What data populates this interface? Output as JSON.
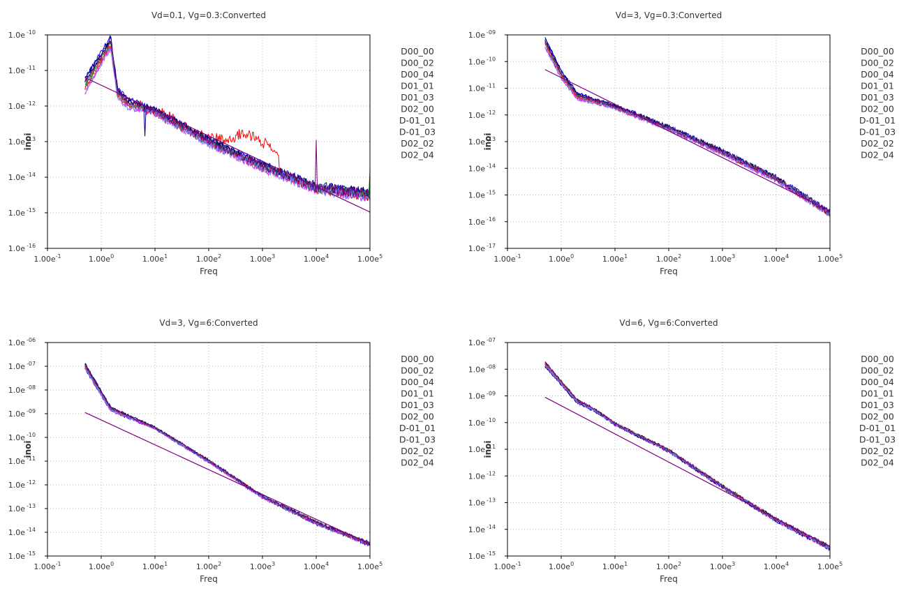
{
  "figure": {
    "background": "#ffffff"
  },
  "chart_data": [
    {
      "type": "line",
      "title": "Vd=0.1, Vg=0.3:Converted",
      "xlabel": "Freq",
      "ylabel": "inoi",
      "xscale": "log",
      "yscale": "log",
      "xlim": [
        0.1,
        100000
      ],
      "ylim_exp": [
        -16,
        -10
      ],
      "x_ticks": [
        "1.00e-1",
        "1.00e0",
        "1.00e1",
        "1.00e2",
        "1.00e3",
        "1.00e4",
        "1.00e5"
      ],
      "y_ticks": [
        "1.0e-16",
        "1.0e-15",
        "1.0e-14",
        "1.0e-13",
        "1.0e-12",
        "1.0e-11",
        "1.0e-10"
      ],
      "grid": "dotted",
      "legend_position": "right",
      "series": [
        {
          "name": "D00_00",
          "color": "#ff0000"
        },
        {
          "name": "D00_02",
          "color": "#0000ff"
        },
        {
          "name": "D00_04",
          "color": "#008000"
        },
        {
          "name": "D01_01",
          "color": "#ff00ff"
        },
        {
          "name": "D01_03",
          "color": "#000000"
        },
        {
          "name": "D02_00",
          "color": "#cc3333"
        },
        {
          "name": "D-01_01",
          "color": "#000080"
        },
        {
          "name": "D-01_03",
          "color": "#4d8080"
        },
        {
          "name": "D02_02",
          "color": "#8080ff"
        },
        {
          "name": "D02_04",
          "color": "#800080"
        }
      ],
      "trend_line": {
        "color": "#800080",
        "points": [
          [
            0.5,
            -11.2
          ],
          [
            100000,
            -14.98
          ]
        ]
      },
      "curve": {
        "knots": [
          [
            0.5,
            -11.4
          ],
          [
            1.5,
            -10.2
          ],
          [
            2,
            -11.6
          ],
          [
            3,
            -11.9
          ],
          [
            10,
            -12.15
          ],
          [
            100,
            -13.0
          ],
          [
            1000,
            -13.7
          ],
          [
            10000,
            -14.3
          ],
          [
            100000,
            -14.5
          ]
        ],
        "noise": 0.22,
        "spread": 0.35,
        "bump": {
          "series": 0,
          "from": 2.5,
          "to": 2000,
          "amp": 0.75,
          "center": 800,
          "width": 0.55
        },
        "spikes": [
          [
            6.5,
            -12.85
          ],
          [
            10000,
            -12.95
          ],
          [
            100000,
            -13.8
          ]
        ]
      }
    },
    {
      "type": "line",
      "title": "Vd=3, Vg=0.3:Converted",
      "xlabel": "Freq",
      "ylabel": "inoi",
      "xscale": "log",
      "yscale": "log",
      "xlim": [
        0.1,
        100000
      ],
      "ylim_exp": [
        -17,
        -9
      ],
      "x_ticks": [
        "1.00e-1",
        "1.00e0",
        "1.00e1",
        "1.00e2",
        "1.00e3",
        "1.00e4",
        "1.00e5"
      ],
      "y_ticks": [
        "1.0e-17",
        "1.0e-16",
        "1.0e-15",
        "1.0e-14",
        "1.0e-13",
        "1.0e-12",
        "1.0e-11",
        "1.0e-10",
        "1.0e-09"
      ],
      "grid": "dotted",
      "legend_position": "right",
      "series": [
        {
          "name": "D00_00",
          "color": "#ff0000"
        },
        {
          "name": "D00_02",
          "color": "#0000ff"
        },
        {
          "name": "D00_04",
          "color": "#008000"
        },
        {
          "name": "D01_01",
          "color": "#ff00ff"
        },
        {
          "name": "D01_03",
          "color": "#000000"
        },
        {
          "name": "D02_00",
          "color": "#cc3333"
        },
        {
          "name": "D-01_01",
          "color": "#000080"
        },
        {
          "name": "D-01_03",
          "color": "#4d8080"
        },
        {
          "name": "D02_02",
          "color": "#8080ff"
        },
        {
          "name": "D02_04",
          "color": "#800080"
        }
      ],
      "trend_line": {
        "color": "#800080",
        "points": [
          [
            0.5,
            -10.3
          ],
          [
            100000,
            -15.6
          ]
        ]
      },
      "curve": {
        "knots": [
          [
            0.5,
            -9.3
          ],
          [
            1,
            -10.5
          ],
          [
            2,
            -11.3
          ],
          [
            10,
            -11.7
          ],
          [
            100,
            -12.5
          ],
          [
            1000,
            -13.4
          ],
          [
            10000,
            -14.4
          ],
          [
            50000,
            -15.3
          ],
          [
            100000,
            -15.7
          ]
        ],
        "noise": 0.16,
        "spread": 0.3,
        "bump": null,
        "spikes": []
      }
    },
    {
      "type": "line",
      "title": "Vd=3, Vg=6:Converted",
      "xlabel": "Freq",
      "ylabel": "inoi",
      "xscale": "log",
      "yscale": "log",
      "xlim": [
        0.1,
        100000
      ],
      "ylim_exp": [
        -15,
        -6
      ],
      "x_ticks": [
        "1.00e-1",
        "1.00e0",
        "1.00e1",
        "1.00e2",
        "1.00e3",
        "1.00e4",
        "1.00e5"
      ],
      "y_ticks": [
        "1.0e-15",
        "1.0e-14",
        "1.0e-13",
        "1.0e-12",
        "1.0e-11",
        "1.0e-10",
        "1.0e-09",
        "1.0e-08",
        "1.0e-07",
        "1.0e-06"
      ],
      "grid": "dotted",
      "legend_position": "right",
      "series": [
        {
          "name": "D00_00",
          "color": "#ff0000"
        },
        {
          "name": "D00_02",
          "color": "#0000ff"
        },
        {
          "name": "D00_04",
          "color": "#008000"
        },
        {
          "name": "D01_01",
          "color": "#ff00ff"
        },
        {
          "name": "D01_03",
          "color": "#000000"
        },
        {
          "name": "D02_00",
          "color": "#cc3333"
        },
        {
          "name": "D-01_01",
          "color": "#000080"
        },
        {
          "name": "D-01_03",
          "color": "#4d8080"
        },
        {
          "name": "D02_02",
          "color": "#8080ff"
        },
        {
          "name": "D02_04",
          "color": "#800080"
        }
      ],
      "trend_line": {
        "color": "#800080",
        "points": [
          [
            0.5,
            -8.95
          ],
          [
            100000,
            -14.5
          ]
        ]
      },
      "curve": {
        "knots": [
          [
            0.5,
            -7.0
          ],
          [
            1.5,
            -8.8
          ],
          [
            3,
            -9.1
          ],
          [
            10,
            -9.6
          ],
          [
            100,
            -11.0
          ],
          [
            1000,
            -12.5
          ],
          [
            10000,
            -13.6
          ],
          [
            100000,
            -14.5
          ]
        ],
        "noise": 0.12,
        "spread": 0.18,
        "bump": null,
        "spikes": []
      }
    },
    {
      "type": "line",
      "title": "Vd=6, Vg=6:Converted",
      "xlabel": "Freq",
      "ylabel": "inoi",
      "xscale": "log",
      "yscale": "log",
      "xlim": [
        0.1,
        100000
      ],
      "ylim_exp": [
        -15,
        -7
      ],
      "x_ticks": [
        "1.00e-1",
        "1.00e0",
        "1.00e1",
        "1.00e2",
        "1.00e3",
        "1.00e4",
        "1.00e5"
      ],
      "y_ticks": [
        "1.0e-15",
        "1.0e-14",
        "1.0e-13",
        "1.0e-12",
        "1.0e-11",
        "1.0e-10",
        "1.0e-09",
        "1.0e-08",
        "1.0e-07"
      ],
      "grid": "dotted",
      "legend_position": "right",
      "series": [
        {
          "name": "D00_00",
          "color": "#ff0000"
        },
        {
          "name": "D00_02",
          "color": "#0000ff"
        },
        {
          "name": "D00_04",
          "color": "#008000"
        },
        {
          "name": "D01_01",
          "color": "#ff00ff"
        },
        {
          "name": "D01_03",
          "color": "#000000"
        },
        {
          "name": "D02_00",
          "color": "#cc3333"
        },
        {
          "name": "D-01_01",
          "color": "#000080"
        },
        {
          "name": "D-01_03",
          "color": "#4d8080"
        },
        {
          "name": "D02_02",
          "color": "#8080ff"
        },
        {
          "name": "D02_04",
          "color": "#800080"
        }
      ],
      "trend_line": {
        "color": "#800080",
        "points": [
          [
            0.5,
            -9.05
          ],
          [
            100000,
            -14.65
          ]
        ]
      },
      "curve": {
        "knots": [
          [
            0.5,
            -7.8
          ],
          [
            2,
            -9.2
          ],
          [
            4,
            -9.5
          ],
          [
            10,
            -10.05
          ],
          [
            100,
            -11.05
          ],
          [
            1000,
            -12.4
          ],
          [
            10000,
            -13.65
          ],
          [
            100000,
            -14.7
          ]
        ],
        "noise": 0.12,
        "spread": 0.16,
        "bump": null,
        "spikes": [
          [
            20000,
            -13.9
          ]
        ]
      }
    }
  ]
}
